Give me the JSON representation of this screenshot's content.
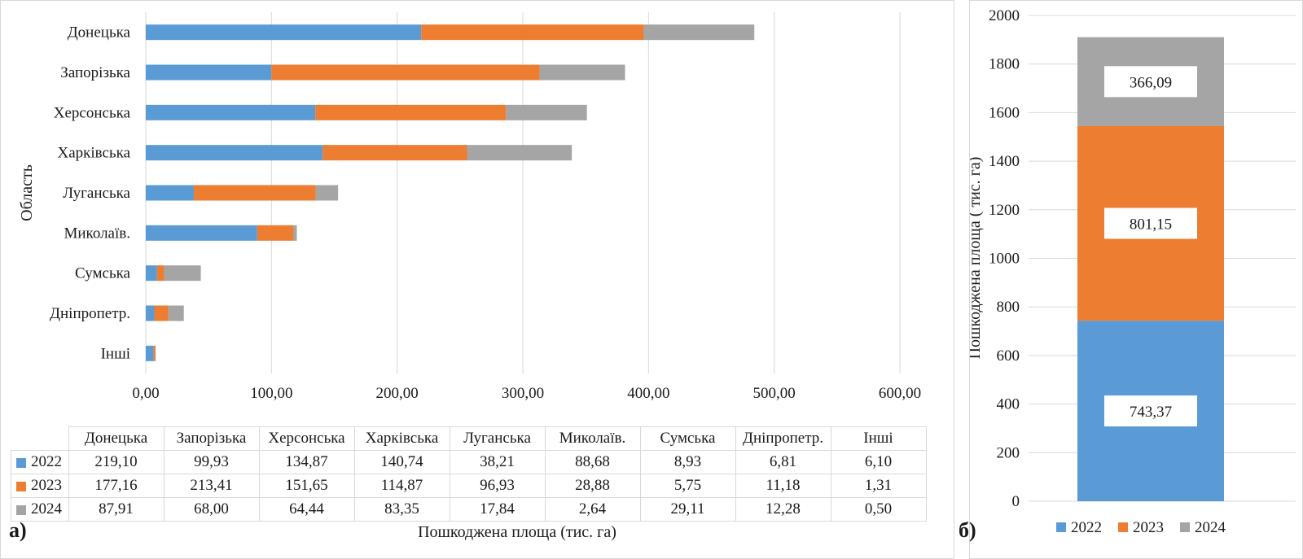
{
  "chart_data": [
    {
      "type": "bar",
      "orientation": "horizontal",
      "stacked": true,
      "panel_label": "а)",
      "categories": [
        "Донецька",
        "Запорізька",
        "Херсонська",
        "Харківська",
        "Луганська",
        "Миколаїв.",
        "Сумська",
        "Дніпропетр.",
        "Інші"
      ],
      "series": [
        {
          "name": "2022",
          "color": "#5b9bd5",
          "values": [
            219.1,
            99.93,
            134.87,
            140.74,
            38.21,
            88.68,
            8.93,
            6.81,
            6.1
          ]
        },
        {
          "name": "2023",
          "color": "#ed7d31",
          "values": [
            177.16,
            213.41,
            151.65,
            114.87,
            96.93,
            28.88,
            5.75,
            11.18,
            1.31
          ]
        },
        {
          "name": "2024",
          "color": "#a5a5a5",
          "values": [
            87.91,
            68.0,
            64.44,
            83.35,
            17.84,
            2.64,
            29.11,
            12.28,
            0.5
          ]
        }
      ],
      "table_values": {
        "2022": [
          "219,10",
          "99,93",
          "134,87",
          "140,74",
          "38,21",
          "88,68",
          "8,93",
          "6,81",
          "6,10"
        ],
        "2023": [
          "177,16",
          "213,41",
          "151,65",
          "114,87",
          "96,93",
          "28,88",
          "5,75",
          "11,18",
          "1,31"
        ],
        "2024": [
          "87,91",
          "68,00",
          "64,44",
          "83,35",
          "17,84",
          "2,64",
          "29,11",
          "12,28",
          "0,50"
        ]
      },
      "xlabel": "Пошкоджена площа (тис. га)",
      "ylabel": "Область",
      "xlim": [
        0,
        600
      ],
      "xticks": [
        "0,00",
        "100,00",
        "200,00",
        "300,00",
        "400,00",
        "500,00",
        "600,00"
      ],
      "grid": "vertical",
      "legend": "data-table"
    },
    {
      "type": "bar",
      "stacked": true,
      "panel_label": "б)",
      "categories": [
        ""
      ],
      "series": [
        {
          "name": "2022",
          "color": "#5b9bd5",
          "values": [
            743.37
          ],
          "label": "743,37"
        },
        {
          "name": "2023",
          "color": "#ed7d31",
          "values": [
            801.15
          ],
          "label": "801,15"
        },
        {
          "name": "2024",
          "color": "#a5a5a5",
          "values": [
            366.09
          ],
          "label": "366,09"
        }
      ],
      "ylabel": "Пошкоджена площа ( тис. га)",
      "ylim": [
        0,
        2000
      ],
      "yticks": [
        "0",
        "200",
        "400",
        "600",
        "800",
        "1000",
        "1200",
        "1400",
        "1600",
        "1800",
        "2000"
      ],
      "grid": "horizontal",
      "legend": "bottom"
    }
  ]
}
